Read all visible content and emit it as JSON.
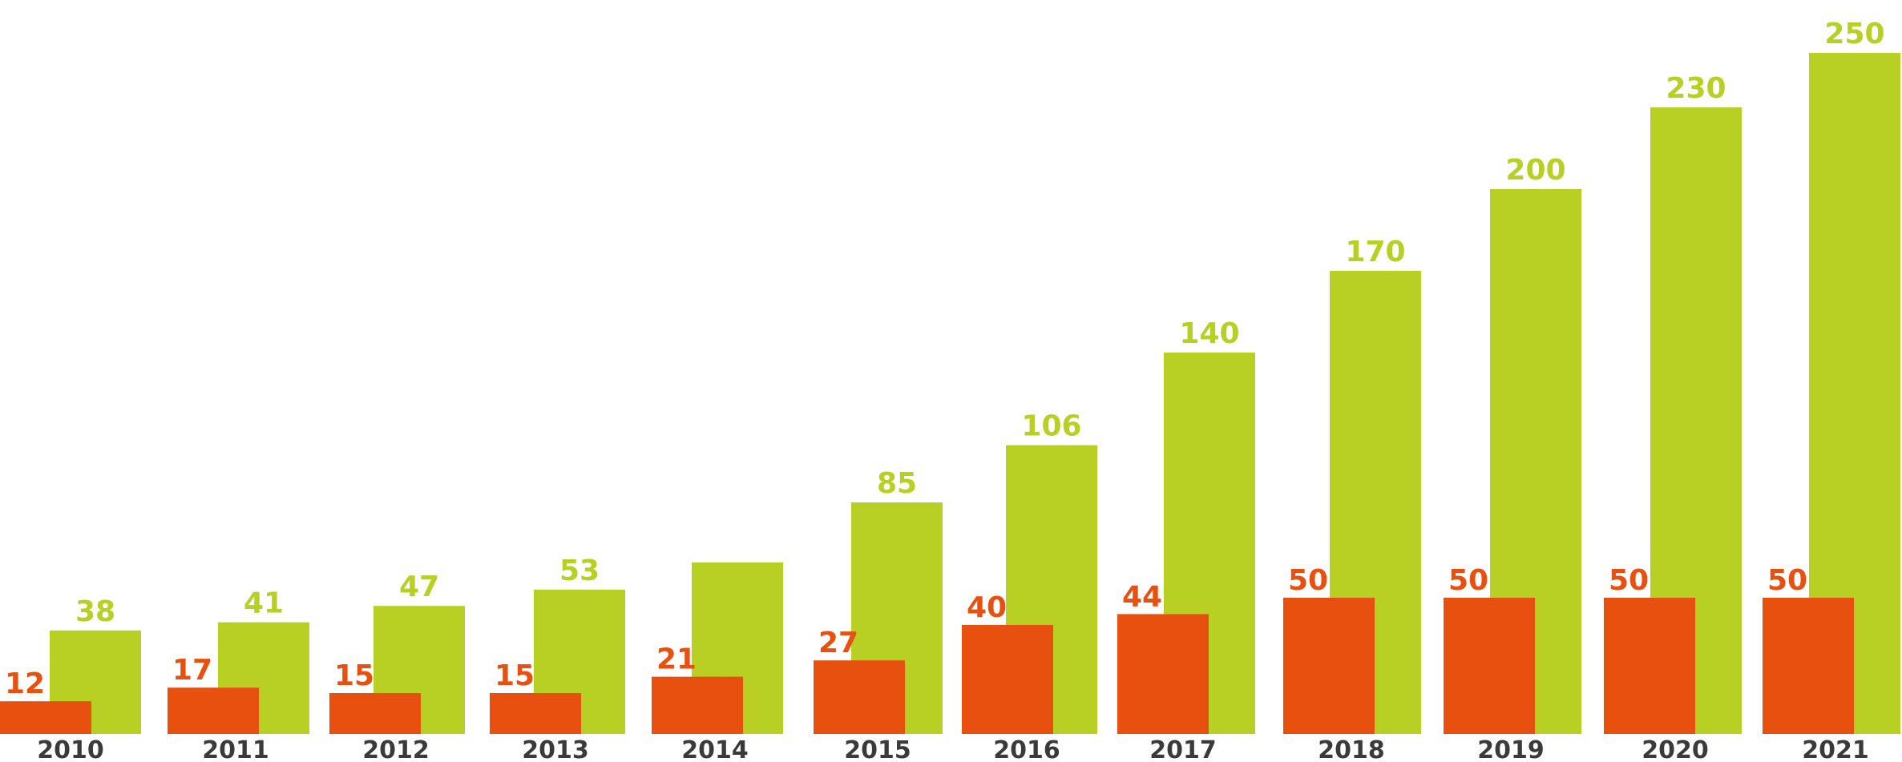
{
  "chart_data": {
    "type": "bar",
    "categories": [
      "2010",
      "2011",
      "2012",
      "2013",
      "2014",
      "2015",
      "2016",
      "2017",
      "2018",
      "2019",
      "2020",
      "2021"
    ],
    "series": [
      {
        "values": [
          12,
          17,
          15,
          15,
          21,
          27,
          40,
          44,
          50,
          50,
          50,
          50
        ],
        "labels": [
          "12",
          "17",
          "15",
          "15",
          "21",
          "27",
          "40",
          "44",
          "50",
          "50",
          "50",
          "50"
        ],
        "color": "#e8500f"
      },
      {
        "values": [
          38,
          41,
          47,
          53,
          63,
          85,
          106,
          140,
          170,
          200,
          230,
          250
        ],
        "labels": [
          "38",
          "41",
          "47",
          "53",
          "",
          "85",
          "106",
          "140",
          "170",
          "200",
          "230",
          "250"
        ],
        "color": "#b8cf24"
      }
    ],
    "ylim": [
      0,
      250
    ],
    "grid": false,
    "legend": "none",
    "xlabel": "",
    "ylabel": ""
  }
}
